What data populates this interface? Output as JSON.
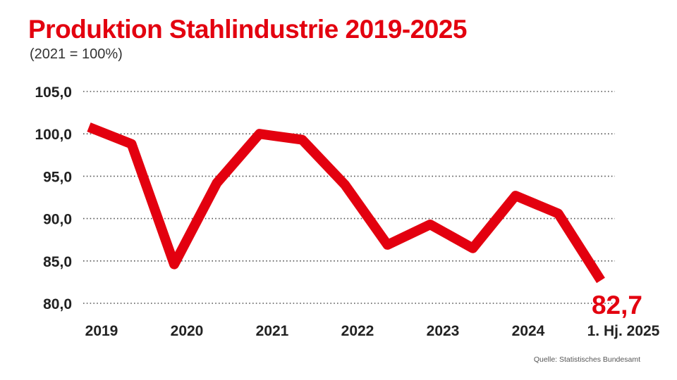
{
  "colors": {
    "accent": "#e3000f",
    "text": "#222222",
    "grid": "#555555"
  },
  "chart_data": {
    "type": "line",
    "title": "Produktion Stahlindustrie 2019-2025",
    "subtitle": "(2021 = 100%)",
    "xlabel": "",
    "ylabel": "",
    "ylim": [
      80,
      105
    ],
    "yticks": [
      80,
      85,
      90,
      95,
      100,
      105
    ],
    "ytick_labels": [
      "80,0",
      "85,0",
      "90,0",
      "95,0",
      "100,0",
      "105,0"
    ],
    "grid": true,
    "x_tick_labels": [
      "2019",
      "2020",
      "2021",
      "2022",
      "2023",
      "2024",
      "1. Hj. 2025"
    ],
    "series": [
      {
        "name": "Produktion",
        "values": [
          100.8,
          98.8,
          84.6,
          94.2,
          100.0,
          99.3,
          94.0,
          86.9,
          89.3,
          86.5,
          92.7,
          90.6,
          82.7
        ]
      }
    ],
    "last_value_label": "82,7",
    "source": "Quelle: Statistisches Bundesamt"
  }
}
